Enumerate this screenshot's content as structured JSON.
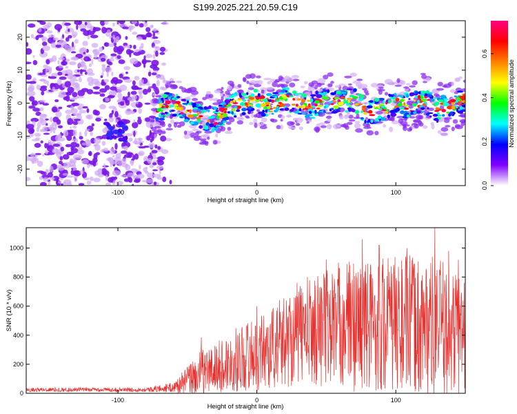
{
  "title": "S199.2025.221.20.59.C19",
  "colors": {
    "snr_line": "#e8312e",
    "axis": "#000000",
    "background": "#ffffff"
  },
  "chart_data": [
    {
      "type": "heatmap",
      "xlabel": "Height of straight line (km)",
      "ylabel": "Frequency (Hz)",
      "xlim": [
        -166,
        150
      ],
      "ylim": [
        -25,
        25
      ],
      "x_ticks": [
        -100,
        0,
        100
      ],
      "x_tick_labels": [
        "-100",
        "0",
        "100"
      ],
      "y_ticks": [
        -20,
        -10,
        0,
        10,
        20
      ],
      "y_tick_labels": [
        "-20",
        "-10",
        "0",
        "10",
        "20"
      ],
      "noise_region_x": [
        -166,
        -66
      ],
      "signal_region_x": [
        -76,
        150
      ],
      "signal_center_freq_hz": 0,
      "signal_halfwidth_hz": 4,
      "signal_track": [
        {
          "x": -72,
          "y": -2
        },
        {
          "x": -62,
          "y": 0
        },
        {
          "x": -52,
          "y": -2
        },
        {
          "x": -42,
          "y": -4
        },
        {
          "x": -30,
          "y": -5
        },
        {
          "x": -20,
          "y": -1
        },
        {
          "x": -10,
          "y": 0
        },
        {
          "x": 0,
          "y": 1
        },
        {
          "x": 10,
          "y": -1
        },
        {
          "x": 20,
          "y": 1
        },
        {
          "x": 30,
          "y": 0
        },
        {
          "x": 40,
          "y": -1
        },
        {
          "x": 50,
          "y": 1
        },
        {
          "x": 60,
          "y": 0
        },
        {
          "x": 70,
          "y": 1
        },
        {
          "x": 80,
          "y": -3
        },
        {
          "x": 90,
          "y": -2
        },
        {
          "x": 100,
          "y": 0
        },
        {
          "x": 110,
          "y": -1
        },
        {
          "x": 120,
          "y": 1
        },
        {
          "x": 130,
          "y": -2
        },
        {
          "x": 140,
          "y": -1
        },
        {
          "x": 148,
          "y": 1
        }
      ],
      "colorbar": {
        "label": "Normalized spectral amplitude",
        "range": [
          0,
          0.75
        ],
        "ticks": [
          0.0,
          0.2,
          0.4,
          0.6
        ],
        "tick_labels": [
          "0.0",
          "0.2",
          "0.4",
          "0.6"
        ],
        "colormap": [
          "#ffffff",
          "#8000ff",
          "#0000ff",
          "#00ffff",
          "#00ff00",
          "#ffff00",
          "#ff8000",
          "#ff0000",
          "#ff0080"
        ]
      }
    },
    {
      "type": "line",
      "xlabel": "Height of straight line (km)",
      "ylabel": "SNR (10 * v/v)",
      "xlim": [
        -166,
        150
      ],
      "ylim": [
        0,
        1140
      ],
      "x_ticks": [
        -100,
        0,
        100
      ],
      "x_tick_labels": [
        "-100",
        "0",
        "100"
      ],
      "y_ticks": [
        0,
        200,
        400,
        600,
        800,
        1000
      ],
      "y_tick_labels": [
        "0",
        "200",
        "400",
        "600",
        "800",
        "1000"
      ],
      "series": [
        {
          "name": "SNR",
          "envelope": {
            "x": [
              -166,
              -120,
              -80,
              -60,
              -50,
              -40,
              -30,
              -20,
              -10,
              0,
              10,
              20,
              30,
              40,
              50,
              60,
              70,
              80,
              90,
              100,
              110,
              120,
              130,
              140,
              150
            ],
            "mean": [
              25,
              25,
              25,
              40,
              90,
              140,
              170,
              210,
              250,
              280,
              310,
              360,
              420,
              440,
              460,
              480,
              470,
              470,
              480,
              480,
              470,
              460,
              450,
              430,
              420
            ],
            "amp": [
              15,
              15,
              15,
              35,
              100,
              160,
              180,
              200,
              240,
              260,
              290,
              320,
              360,
              380,
              420,
              440,
              460,
              460,
              480,
              480,
              480,
              500,
              480,
              460,
              420
            ]
          },
          "peaks": [
            {
              "x": -40,
              "y": 385
            },
            {
              "x": 0,
              "y": 600
            },
            {
              "x": 30,
              "y": 700
            },
            {
              "x": 50,
              "y": 920
            },
            {
              "x": 76,
              "y": 1060
            },
            {
              "x": 88,
              "y": 1020
            },
            {
              "x": 108,
              "y": 1000
            },
            {
              "x": 128,
              "y": 1140
            },
            {
              "x": 138,
              "y": 980
            },
            {
              "x": 145,
              "y": 920
            }
          ],
          "n_points": 1400
        }
      ]
    }
  ]
}
